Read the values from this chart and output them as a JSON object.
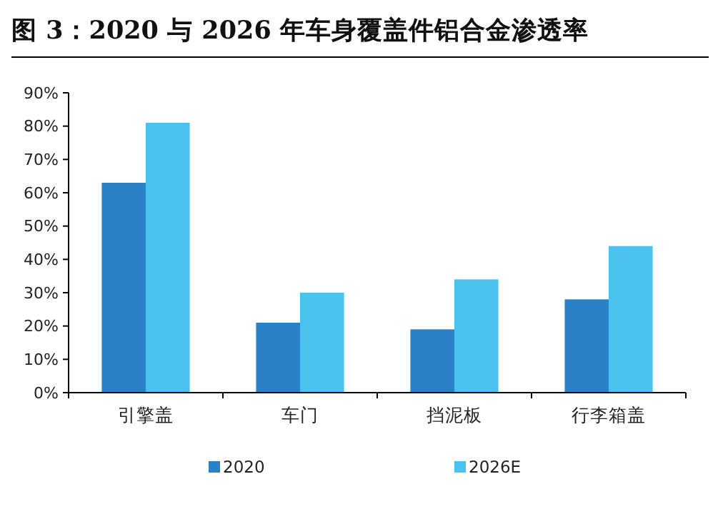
{
  "chart_data": {
    "type": "bar",
    "title": "图 3：2020 与 2026 年车身覆盖件铝合金渗透率",
    "categories": [
      "引擎盖",
      "车门",
      "挡泥板",
      "行李箱盖"
    ],
    "series": [
      {
        "name": "2020",
        "color": "#2a81c6",
        "values": [
          63,
          21,
          19,
          28
        ]
      },
      {
        "name": "2026E",
        "color": "#4bc1ee",
        "values": [
          81,
          30,
          34,
          44
        ]
      }
    ],
    "ylim": [
      0,
      90
    ],
    "yticks": [
      {
        "value": 0,
        "label": "0%"
      },
      {
        "value": 10,
        "label": "10%"
      },
      {
        "value": 20,
        "label": "20%"
      },
      {
        "value": 30,
        "label": "30%"
      },
      {
        "value": 40,
        "label": "40%"
      },
      {
        "value": 50,
        "label": "50%"
      },
      {
        "value": 60,
        "label": "60%"
      },
      {
        "value": 70,
        "label": "70%"
      },
      {
        "value": 80,
        "label": "80%"
      },
      {
        "value": 90,
        "label": "90%"
      }
    ],
    "grid": false,
    "legend": "bottom"
  }
}
